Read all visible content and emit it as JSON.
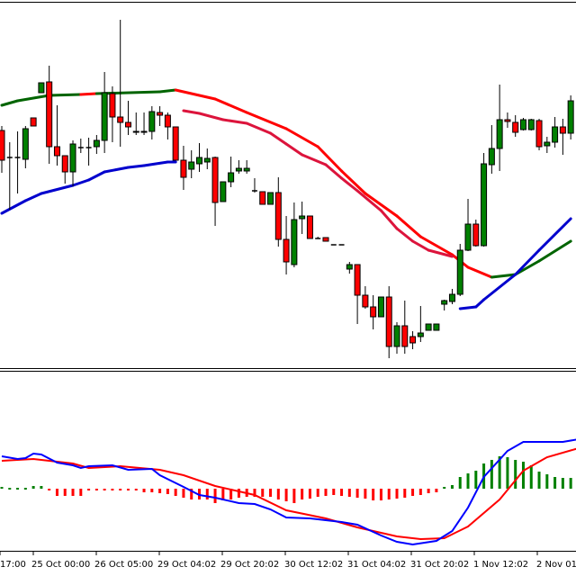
{
  "chart_data": [
    {
      "type": "candlestick",
      "panel": "price",
      "grid": false,
      "colors": {
        "bull": "#008000",
        "bear": "#ff0000",
        "wick": "#000000"
      },
      "candles": [
        [
          265,
          270,
          218,
          232
        ],
        [
          235,
          252,
          177,
          235
        ],
        [
          235,
          264,
          195,
          235
        ],
        [
          233,
          270,
          223,
          267
        ],
        [
          279,
          279,
          270,
          270
        ],
        [
          307,
          318,
          307,
          318
        ],
        [
          319,
          337,
          228,
          247
        ],
        [
          247,
          293,
          226,
          237
        ],
        [
          237,
          237,
          206,
          219
        ],
        [
          219,
          254,
          203,
          250
        ],
        [
          246,
          256,
          240,
          246
        ],
        [
          246,
          257,
          226,
          246
        ],
        [
          247,
          260,
          239,
          254
        ],
        [
          254,
          330,
          240,
          307
        ],
        [
          306,
          314,
          252,
          280
        ],
        [
          280,
          388,
          247,
          274
        ],
        [
          274,
          298,
          260,
          269
        ],
        [
          263,
          285,
          260,
          264
        ],
        [
          263,
          285,
          260,
          264
        ],
        [
          264,
          292,
          255,
          286
        ],
        [
          285,
          292,
          270,
          282
        ],
        [
          282,
          285,
          255,
          269
        ],
        [
          269,
          269,
          232,
          232
        ],
        [
          232,
          248,
          199,
          213
        ],
        [
          222,
          243,
          212,
          230
        ],
        [
          228,
          251,
          219,
          235
        ],
        [
          230,
          245,
          222,
          234
        ],
        [
          235,
          236,
          159,
          185
        ],
        [
          186,
          208,
          186,
          208
        ],
        [
          208,
          236,
          202,
          218
        ],
        [
          220,
          232,
          217,
          223
        ],
        [
          220,
          232,
          217,
          223
        ],
        [
          198,
          212,
          196,
          198
        ],
        [
          197,
          197,
          183,
          183
        ],
        [
          183,
          196,
          183,
          196
        ],
        [
          196,
          213,
          136,
          144
        ],
        [
          144,
          170,
          105,
          119
        ],
        [
          116,
          185,
          113,
          166
        ],
        [
          167,
          186,
          150,
          170
        ],
        [
          170,
          170,
          145,
          145
        ],
        [
          145,
          147,
          145,
          145
        ],
        [
          146,
          146,
          142,
          142
        ],
        [
          138,
          138,
          138,
          138
        ],
        [
          138,
          138,
          138,
          138
        ],
        [
          111,
          119,
          106,
          116
        ],
        [
          116,
          116,
          50,
          82
        ],
        [
          82,
          92,
          67,
          69
        ],
        [
          69,
          82,
          44,
          58
        ],
        [
          58,
          80,
          58,
          80
        ],
        [
          80,
          92,
          12,
          25
        ],
        [
          25,
          52,
          17,
          48
        ],
        [
          48,
          76,
          17,
          25
        ],
        [
          36,
          42,
          22,
          29
        ],
        [
          36,
          70,
          30,
          40
        ],
        [
          43,
          50,
          43,
          50
        ],
        [
          43,
          50,
          43,
          50
        ],
        [
          72,
          77,
          65,
          76
        ],
        [
          75,
          89,
          72,
          83
        ],
        [
          83,
          139,
          81,
          132
        ],
        [
          132,
          189,
          131,
          161
        ],
        [
          161,
          166,
          136,
          137
        ],
        [
          137,
          240,
          136,
          228
        ],
        [
          227,
          271,
          217,
          245
        ],
        [
          245,
          316,
          220,
          277
        ],
        [
          277,
          285,
          268,
          275
        ],
        [
          274,
          282,
          258,
          263
        ],
        [
          266,
          279,
          265,
          277
        ],
        [
          266,
          278,
          265,
          277
        ],
        [
          276,
          278,
          243,
          247
        ],
        [
          248,
          258,
          240,
          252
        ],
        [
          252,
          280,
          246,
          269
        ],
        [
          269,
          278,
          238,
          262
        ],
        [
          262,
          304,
          255,
          298
        ]
      ],
      "moving_averages": [
        {
          "color_up": "#006400",
          "color_down": "#ff0000",
          "points": [
            [
              0,
              293
            ],
            [
              2,
              298
            ],
            [
              6,
              304
            ],
            [
              10,
              305
            ],
            [
              12,
              306
            ],
            [
              20,
              308
            ],
            [
              22,
              310
            ],
            [
              27,
              300
            ],
            [
              31,
              285
            ],
            [
              36,
              267
            ],
            [
              40,
              247
            ],
            [
              43,
              220
            ],
            [
              46,
              195
            ],
            [
              50,
              170
            ],
            [
              53,
              147
            ],
            [
              57,
              127
            ],
            [
              59,
              113
            ],
            [
              62,
              102
            ],
            [
              65,
              105
            ],
            [
              68,
              120
            ],
            [
              72,
              142
            ]
          ],
          "down_segments": [
            [
              10,
              12
            ],
            [
              22,
              62
            ]
          ]
        },
        {
          "color": "#dc143c",
          "points": [
            [
              23,
              287
            ],
            [
              25,
              284
            ],
            [
              28,
              277
            ],
            [
              31,
              273
            ],
            [
              34,
              262
            ],
            [
              36,
              250
            ],
            [
              38,
              238
            ],
            [
              41,
              227
            ],
            [
              43,
              212
            ],
            [
              45,
              198
            ],
            [
              48,
              176
            ],
            [
              50,
              156
            ],
            [
              52,
              142
            ],
            [
              54,
              132
            ],
            [
              57,
              125
            ]
          ]
        },
        {
          "color": "#0000cd",
          "points": [
            [
              0,
              173
            ],
            [
              3,
              187
            ],
            [
              5,
              195
            ],
            [
              9,
              204
            ],
            [
              11,
              210
            ],
            [
              13,
              219
            ],
            [
              16,
              224
            ],
            [
              18,
              226
            ],
            [
              21,
              230
            ],
            [
              22,
              230
            ]
          ]
        },
        {
          "color": "#0000cd",
          "points": [
            [
              58,
              67
            ],
            [
              60,
              69
            ],
            [
              61,
              77
            ],
            [
              65,
              105
            ],
            [
              68,
              132
            ],
            [
              72,
              167
            ]
          ]
        }
      ]
    },
    {
      "type": "macd",
      "panel": "oscillator",
      "grid": false,
      "colors": {
        "hist_up": "#008000",
        "hist_down": "#ff0000",
        "main": "#0000ff",
        "signal": "#ff0000"
      },
      "histogram": [
        2,
        1,
        1,
        1,
        3,
        3,
        -2,
        -8,
        -8,
        -8,
        -8,
        -1,
        -2,
        -2,
        -2,
        -2,
        -2,
        -2,
        -4,
        -4,
        -5,
        -6,
        -8,
        -10,
        -12,
        -12,
        -12,
        -16,
        -13,
        -12,
        -10,
        -9,
        -9,
        -9,
        -9,
        -12,
        -14,
        -16,
        -12,
        -11,
        -9,
        -8,
        -7,
        -8,
        -9,
        -10,
        -11,
        -13,
        -13,
        -12,
        -11,
        -10,
        -8,
        -7,
        -5,
        -4,
        2,
        4,
        13,
        17,
        20,
        28,
        32,
        36,
        35,
        32,
        30,
        26,
        19,
        16,
        13,
        12,
        12
      ],
      "main_line": [
        [
          0,
          36
        ],
        [
          2,
          33
        ],
        [
          3,
          34
        ],
        [
          4,
          39
        ],
        [
          5,
          38
        ],
        [
          7,
          29
        ],
        [
          9,
          26
        ],
        [
          10,
          23
        ],
        [
          11,
          25
        ],
        [
          14,
          26
        ],
        [
          16,
          21
        ],
        [
          19,
          22
        ],
        [
          20,
          15
        ],
        [
          23,
          2
        ],
        [
          25,
          -7
        ],
        [
          27,
          -10
        ],
        [
          30,
          -16
        ],
        [
          32,
          -17
        ],
        [
          34,
          -23
        ],
        [
          36,
          -32
        ],
        [
          39,
          -33
        ],
        [
          41,
          -35
        ],
        [
          43,
          -37
        ],
        [
          45,
          -40
        ],
        [
          48,
          -52
        ],
        [
          50,
          -59
        ],
        [
          52,
          -62
        ],
        [
          55,
          -58
        ],
        [
          57,
          -47
        ],
        [
          59,
          -21
        ],
        [
          61,
          13
        ],
        [
          64,
          42
        ],
        [
          66,
          52
        ],
        [
          68,
          52
        ],
        [
          71,
          52
        ],
        [
          73,
          55
        ]
      ],
      "signal_line": [
        [
          0,
          31
        ],
        [
          4,
          33
        ],
        [
          9,
          28
        ],
        [
          11,
          23
        ],
        [
          15,
          25
        ],
        [
          20,
          21
        ],
        [
          23,
          15
        ],
        [
          27,
          3
        ],
        [
          32,
          -7
        ],
        [
          36,
          -24
        ],
        [
          41,
          -33
        ],
        [
          45,
          -43
        ],
        [
          50,
          -53
        ],
        [
          53,
          -56
        ],
        [
          56,
          -55
        ],
        [
          59,
          -42
        ],
        [
          63,
          -12
        ],
        [
          66,
          20
        ],
        [
          69,
          35
        ],
        [
          73,
          45
        ]
      ]
    }
  ],
  "x_axis": {
    "tick_labels": [
      "17:00",
      "25 Oct 00:00",
      "26 Oct 05:00",
      "29 Oct 04:02",
      "29 Oct 20:02",
      "30 Oct 12:02",
      "31 Oct 04:02",
      "31 Oct 20:02",
      "1 Nov 12:02",
      "2 Nov 01"
    ]
  }
}
